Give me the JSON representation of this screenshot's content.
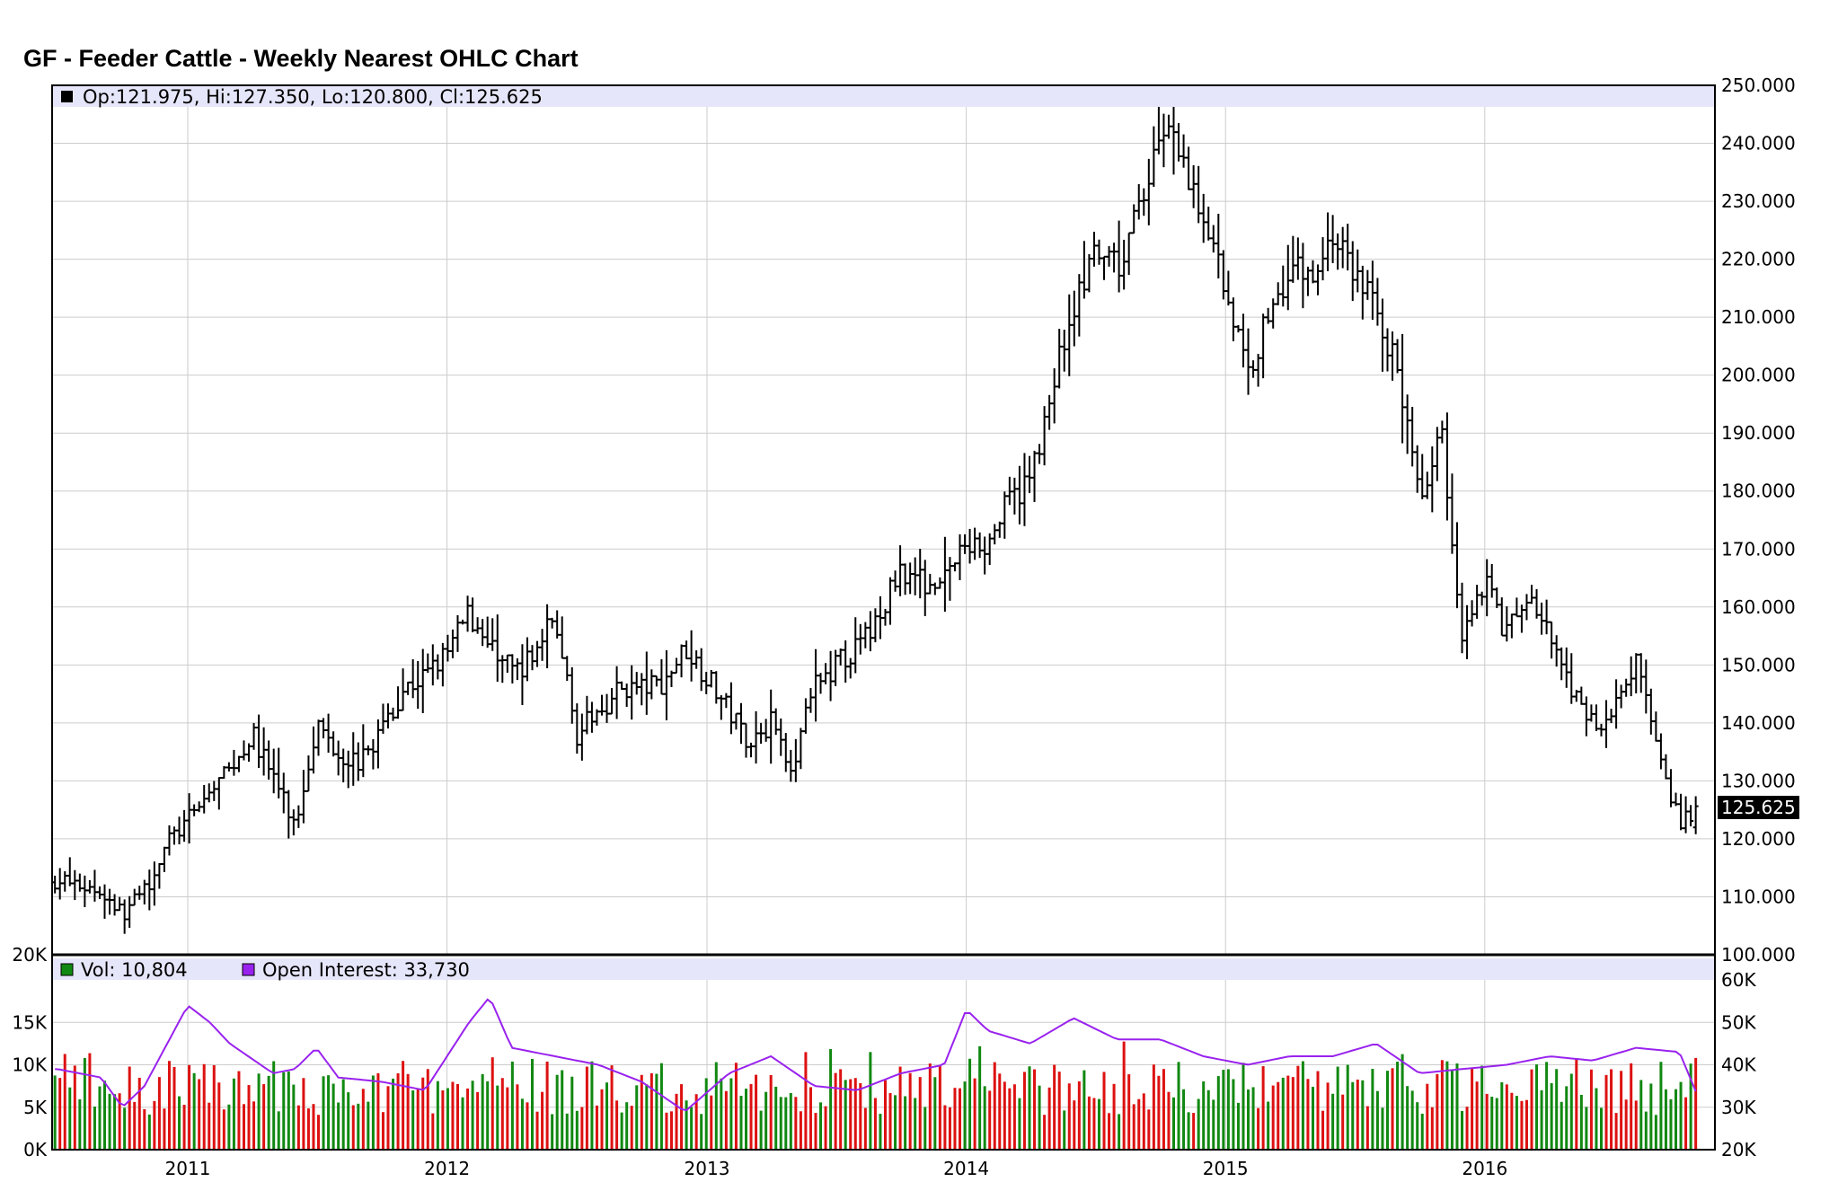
{
  "title": "GF - Feeder Cattle - Weekly Nearest OHLC Chart",
  "price_panel": {
    "legend": "Op:121.975, Hi:127.350, Lo:120.800, Cl:125.625",
    "last_price_label": "125.625",
    "y_ticks": [
      "100.000",
      "110.000",
      "120.000",
      "130.000",
      "140.000",
      "150.000",
      "160.000",
      "170.000",
      "180.000",
      "190.000",
      "200.000",
      "210.000",
      "220.000",
      "230.000",
      "240.000",
      "250.000"
    ]
  },
  "volume_panel": {
    "vol_legend": "Vol: 10,804",
    "oi_legend": "Open Interest: 33,730",
    "left_ticks": [
      "0K",
      "5K",
      "10K",
      "15K",
      "20K"
    ],
    "right_ticks": [
      "20K",
      "30K",
      "40K",
      "50K",
      "60K"
    ]
  },
  "x_ticks": [
    "2011",
    "2012",
    "2013",
    "2014",
    "2015",
    "2016"
  ],
  "colors": {
    "up": "#dd1111",
    "down": "#118811",
    "oi": "#9922ee",
    "legend_bg": "#e6e6fa",
    "grid": "#cccccc"
  },
  "chart_data": {
    "type": "ohlc",
    "interval": "weekly",
    "last_bar": {
      "open": 121.975,
      "high": 127.35,
      "low": 120.8,
      "close": 125.625
    },
    "close_anchors": [
      [
        "2010-07-01",
        113
      ],
      [
        "2010-09-01",
        111
      ],
      [
        "2010-10-01",
        107
      ],
      [
        "2010-11-01",
        111
      ],
      [
        "2010-12-01",
        119
      ],
      [
        "2011-01-01",
        123
      ],
      [
        "2011-02-01",
        128
      ],
      [
        "2011-03-01",
        132
      ],
      [
        "2011-04-01",
        138
      ],
      [
        "2011-05-01",
        131
      ],
      [
        "2011-06-01",
        122
      ],
      [
        "2011-07-01",
        140
      ],
      [
        "2011-08-01",
        135
      ],
      [
        "2011-09-01",
        133
      ],
      [
        "2011-10-01",
        139
      ],
      [
        "2011-11-01",
        146
      ],
      [
        "2011-12-01",
        148
      ],
      [
        "2012-01-01",
        152
      ],
      [
        "2012-02-01",
        159
      ],
      [
        "2012-03-01",
        153
      ],
      [
        "2012-04-01",
        149
      ],
      [
        "2012-05-01",
        151
      ],
      [
        "2012-06-01",
        159
      ],
      [
        "2012-07-01",
        138
      ],
      [
        "2012-08-01",
        142
      ],
      [
        "2012-09-01",
        146
      ],
      [
        "2012-10-01",
        146
      ],
      [
        "2012-11-01",
        147
      ],
      [
        "2012-12-01",
        153
      ],
      [
        "2013-01-01",
        148
      ],
      [
        "2013-02-01",
        142
      ],
      [
        "2013-03-01",
        137
      ],
      [
        "2013-04-01",
        140
      ],
      [
        "2013-05-01",
        133
      ],
      [
        "2013-06-01",
        146
      ],
      [
        "2013-07-01",
        150
      ],
      [
        "2013-08-01",
        153
      ],
      [
        "2013-09-01",
        158
      ],
      [
        "2013-10-01",
        167
      ],
      [
        "2013-11-01",
        164
      ],
      [
        "2013-12-01",
        166
      ],
      [
        "2014-01-01",
        170
      ],
      [
        "2014-02-01",
        171
      ],
      [
        "2014-03-01",
        178
      ],
      [
        "2014-04-01",
        182
      ],
      [
        "2014-05-01",
        198
      ],
      [
        "2014-06-01",
        212
      ],
      [
        "2014-07-01",
        220
      ],
      [
        "2014-08-01",
        218
      ],
      [
        "2014-09-01",
        228
      ],
      [
        "2014-10-01",
        243
      ],
      [
        "2014-11-01",
        236
      ],
      [
        "2014-12-01",
        228
      ],
      [
        "2015-01-01",
        215
      ],
      [
        "2015-02-01",
        200
      ],
      [
        "2015-03-01",
        210
      ],
      [
        "2015-04-01",
        219
      ],
      [
        "2015-05-01",
        217
      ],
      [
        "2015-06-01",
        224
      ],
      [
        "2015-07-01",
        218
      ],
      [
        "2015-08-01",
        212
      ],
      [
        "2015-09-01",
        200
      ],
      [
        "2015-10-01",
        180
      ],
      [
        "2015-11-01",
        190
      ],
      [
        "2015-12-01",
        155
      ],
      [
        "2016-01-01",
        165
      ],
      [
        "2016-02-01",
        155
      ],
      [
        "2016-03-01",
        162
      ],
      [
        "2016-04-01",
        155
      ],
      [
        "2016-05-01",
        145
      ],
      [
        "2016-06-01",
        140
      ],
      [
        "2016-07-01",
        142
      ],
      [
        "2016-08-01",
        150
      ],
      [
        "2016-09-01",
        137
      ],
      [
        "2016-10-01",
        122
      ],
      [
        "2016-10-24",
        125.625
      ]
    ],
    "volume_ylim": [
      0,
      20000
    ],
    "open_interest_ylim": [
      20000,
      60000
    ],
    "open_interest_anchors": [
      [
        "2010-07-01",
        39000
      ],
      [
        "2010-09-01",
        37000
      ],
      [
        "2010-10-01",
        30000
      ],
      [
        "2010-11-01",
        35000
      ],
      [
        "2011-01-01",
        54000
      ],
      [
        "2011-02-01",
        50000
      ],
      [
        "2011-03-01",
        45000
      ],
      [
        "2011-05-01",
        38000
      ],
      [
        "2011-06-01",
        39000
      ],
      [
        "2011-07-01",
        44000
      ],
      [
        "2011-08-01",
        37000
      ],
      [
        "2011-10-01",
        36000
      ],
      [
        "2011-12-01",
        34000
      ],
      [
        "2012-02-01",
        50000
      ],
      [
        "2012-03-01",
        56000
      ],
      [
        "2012-04-01",
        44000
      ],
      [
        "2012-06-01",
        42000
      ],
      [
        "2012-08-01",
        40000
      ],
      [
        "2012-10-01",
        36000
      ],
      [
        "2012-12-01",
        29000
      ],
      [
        "2013-02-01",
        38000
      ],
      [
        "2013-04-01",
        42000
      ],
      [
        "2013-06-01",
        35000
      ],
      [
        "2013-08-01",
        34000
      ],
      [
        "2013-10-01",
        38000
      ],
      [
        "2013-12-01",
        40000
      ],
      [
        "2014-01-01",
        53000
      ],
      [
        "2014-02-01",
        48000
      ],
      [
        "2014-04-01",
        45000
      ],
      [
        "2014-06-01",
        51000
      ],
      [
        "2014-08-01",
        46000
      ],
      [
        "2014-10-01",
        46000
      ],
      [
        "2014-12-01",
        42000
      ],
      [
        "2015-02-01",
        40000
      ],
      [
        "2015-04-01",
        42000
      ],
      [
        "2015-06-01",
        42000
      ],
      [
        "2015-08-01",
        45000
      ],
      [
        "2015-10-01",
        38000
      ],
      [
        "2015-12-01",
        39000
      ],
      [
        "2016-02-01",
        40000
      ],
      [
        "2016-04-01",
        42000
      ],
      [
        "2016-06-01",
        41000
      ],
      [
        "2016-08-01",
        44000
      ],
      [
        "2016-10-01",
        43000
      ],
      [
        "2016-10-24",
        33730
      ]
    ]
  }
}
